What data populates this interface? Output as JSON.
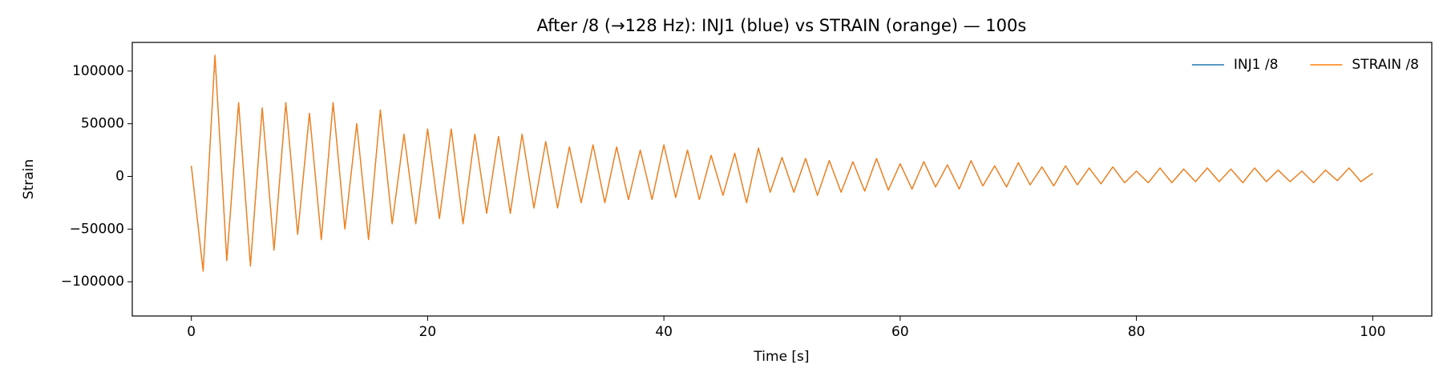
{
  "chart_data": {
    "type": "line",
    "title": "After /8 (→128 Hz): INJ1 (blue) vs STRAIN (orange) — 100s",
    "x_label": "Time [s]",
    "y_label": "Strain",
    "x": [
      0,
      1,
      2,
      3,
      4,
      5,
      6,
      7,
      8,
      9,
      10,
      11,
      12,
      13,
      14,
      15,
      16,
      17,
      18,
      19,
      20,
      21,
      22,
      23,
      24,
      25,
      26,
      27,
      28,
      29,
      30,
      31,
      32,
      33,
      34,
      35,
      36,
      37,
      38,
      39,
      40,
      41,
      42,
      43,
      44,
      45,
      46,
      47,
      48,
      49,
      50,
      51,
      52,
      53,
      54,
      55,
      56,
      57,
      58,
      59,
      60,
      61,
      62,
      63,
      64,
      65,
      66,
      67,
      68,
      69,
      70,
      71,
      72,
      73,
      74,
      75,
      76,
      77,
      78,
      79,
      80,
      81,
      82,
      83,
      84,
      85,
      86,
      87,
      88,
      89,
      90,
      91,
      92,
      93,
      94,
      95,
      96,
      97,
      98,
      99,
      100
    ],
    "series": [
      {
        "name": "INJ1 /8",
        "color": "#1f77b4",
        "values": [
          10000,
          -90000,
          115000,
          -80000,
          70000,
          -85000,
          65000,
          -70000,
          70000,
          -55000,
          60000,
          -60000,
          70000,
          -50000,
          50000,
          -60000,
          63000,
          -45000,
          40000,
          -45000,
          45000,
          -40000,
          45000,
          -45000,
          40000,
          -35000,
          38000,
          -35000,
          40000,
          -30000,
          33000,
          -30000,
          28000,
          -25000,
          30000,
          -25000,
          28000,
          -22000,
          25000,
          -22000,
          30000,
          -20000,
          25000,
          -22000,
          20000,
          -18000,
          22000,
          -25000,
          27000,
          -15000,
          18000,
          -15000,
          17000,
          -18000,
          15000,
          -15000,
          14000,
          -14000,
          17000,
          -13000,
          12000,
          -12000,
          14000,
          -10000,
          11000,
          -12000,
          15000,
          -9000,
          10000,
          -10000,
          13000,
          -8000,
          9000,
          -9000,
          10000,
          -8000,
          8000,
          -7000,
          9000,
          -6000,
          5000,
          -6000,
          8000,
          -6000,
          7000,
          -5000,
          8000,
          -5000,
          7000,
          -6000,
          8000,
          -5000,
          6000,
          -5000,
          5000,
          -6000,
          6000,
          -4000,
          8000,
          -5000,
          3000
        ]
      },
      {
        "name": "STRAIN /8",
        "color": "#ff7f0e",
        "values": [
          10000,
          -90000,
          115000,
          -80000,
          70000,
          -85000,
          65000,
          -70000,
          70000,
          -55000,
          60000,
          -60000,
          70000,
          -50000,
          50000,
          -60000,
          63000,
          -45000,
          40000,
          -45000,
          45000,
          -40000,
          45000,
          -45000,
          40000,
          -35000,
          38000,
          -35000,
          40000,
          -30000,
          33000,
          -30000,
          28000,
          -25000,
          30000,
          -25000,
          28000,
          -22000,
          25000,
          -22000,
          30000,
          -20000,
          25000,
          -22000,
          20000,
          -18000,
          22000,
          -25000,
          27000,
          -15000,
          18000,
          -15000,
          17000,
          -18000,
          15000,
          -15000,
          14000,
          -14000,
          17000,
          -13000,
          12000,
          -12000,
          14000,
          -10000,
          11000,
          -12000,
          15000,
          -9000,
          10000,
          -10000,
          13000,
          -8000,
          9000,
          -9000,
          10000,
          -8000,
          8000,
          -7000,
          9000,
          -6000,
          5000,
          -6000,
          8000,
          -6000,
          7000,
          -5000,
          8000,
          -5000,
          7000,
          -6000,
          8000,
          -5000,
          6000,
          -5000,
          5000,
          -6000,
          6000,
          -4000,
          8000,
          -5000,
          3000
        ]
      }
    ],
    "xlim": [
      -5,
      105
    ],
    "xticks": [
      0,
      20,
      40,
      60,
      80,
      100
    ],
    "ylim": [
      -132500,
      127200
    ],
    "yticks": [
      {
        "value": -100000,
        "label": "−100000"
      },
      {
        "value": -50000,
        "label": "−50000"
      },
      0,
      50000,
      100000
    ],
    "grid": false,
    "legend": "upper right"
  }
}
